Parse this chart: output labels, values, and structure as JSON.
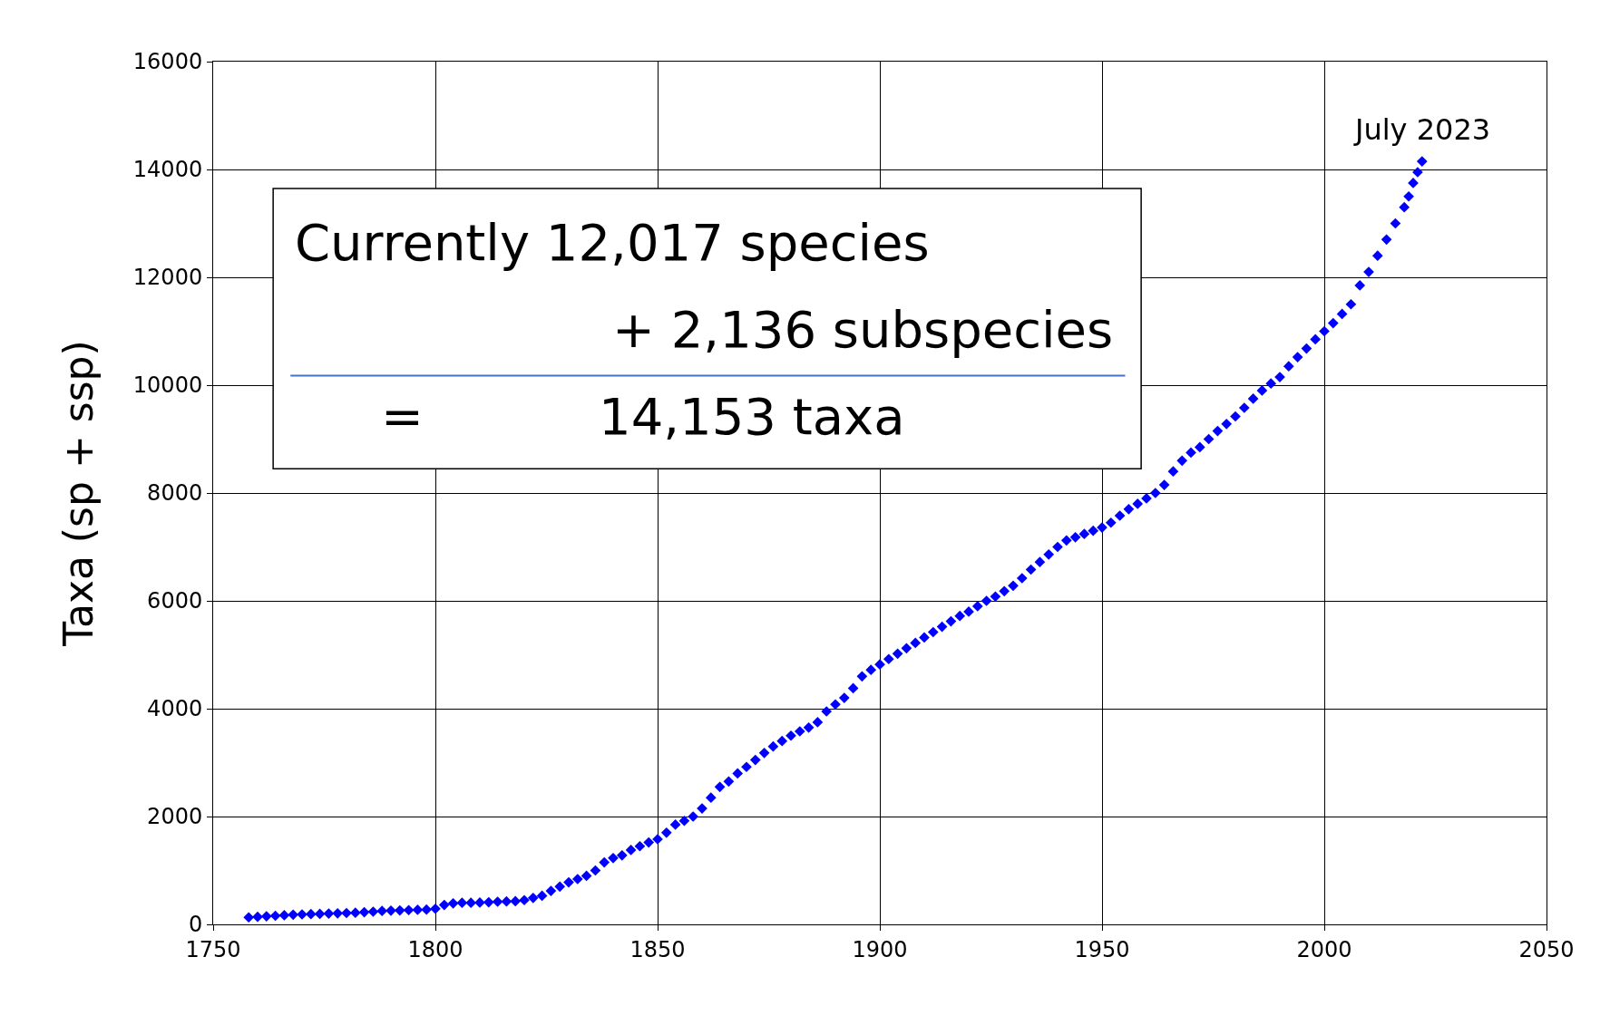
{
  "chart_data": {
    "type": "scatter",
    "ylabel": "Taxa (sp + ssp)",
    "x": [
      1758,
      1760,
      1762,
      1764,
      1766,
      1768,
      1770,
      1772,
      1774,
      1776,
      1778,
      1780,
      1782,
      1784,
      1786,
      1788,
      1790,
      1792,
      1794,
      1796,
      1798,
      1800,
      1802,
      1804,
      1806,
      1808,
      1810,
      1812,
      1814,
      1816,
      1818,
      1820,
      1822,
      1824,
      1826,
      1828,
      1830,
      1832,
      1834,
      1836,
      1838,
      1840,
      1842,
      1844,
      1846,
      1848,
      1850,
      1852,
      1854,
      1856,
      1858,
      1860,
      1862,
      1864,
      1866,
      1868,
      1870,
      1872,
      1874,
      1876,
      1878,
      1880,
      1882,
      1884,
      1886,
      1888,
      1890,
      1892,
      1894,
      1896,
      1898,
      1900,
      1902,
      1904,
      1906,
      1908,
      1910,
      1912,
      1914,
      1916,
      1918,
      1920,
      1922,
      1924,
      1926,
      1928,
      1930,
      1932,
      1934,
      1936,
      1938,
      1940,
      1942,
      1944,
      1946,
      1948,
      1950,
      1952,
      1954,
      1956,
      1958,
      1960,
      1962,
      1964,
      1966,
      1968,
      1970,
      1972,
      1974,
      1976,
      1978,
      1980,
      1982,
      1984,
      1986,
      1988,
      1990,
      1992,
      1994,
      1996,
      1998,
      2000,
      2002,
      2004,
      2006,
      2008,
      2010,
      2012,
      2014,
      2016,
      2018,
      2019,
      2020,
      2021,
      2022
    ],
    "series": [
      {
        "color": "#0000ff",
        "values": [
          130,
          140,
          150,
          160,
          170,
          180,
          185,
          190,
          195,
          200,
          205,
          210,
          215,
          225,
          235,
          250,
          255,
          260,
          265,
          270,
          275,
          290,
          360,
          390,
          400,
          400,
          405,
          410,
          420,
          425,
          430,
          450,
          490,
          530,
          620,
          700,
          780,
          840,
          900,
          1000,
          1150,
          1230,
          1280,
          1380,
          1450,
          1520,
          1580,
          1700,
          1850,
          1920,
          2000,
          2150,
          2350,
          2550,
          2650,
          2800,
          2920,
          3050,
          3180,
          3300,
          3400,
          3500,
          3580,
          3650,
          3750,
          3950,
          4080,
          4200,
          4380,
          4600,
          4720,
          4820,
          4920,
          5020,
          5120,
          5220,
          5320,
          5420,
          5520,
          5620,
          5720,
          5800,
          5900,
          6000,
          6080,
          6180,
          6280,
          6420,
          6580,
          6720,
          6860,
          7000,
          7120,
          7180,
          7240,
          7300,
          7360,
          7450,
          7580,
          7700,
          7800,
          7900,
          8000,
          8150,
          8400,
          8600,
          8750,
          8850,
          9000,
          9150,
          9280,
          9420,
          9580,
          9750,
          9900,
          10030,
          10150,
          10350,
          10520,
          10680,
          10850,
          11000,
          11150,
          11320,
          11500,
          11850,
          12100,
          12400,
          12700,
          13000,
          13300,
          13500,
          13750,
          13950,
          14150
        ]
      }
    ],
    "marker": "diamond",
    "xlim": [
      1750,
      2050
    ],
    "xticks": [
      1750,
      1800,
      1850,
      1900,
      1950,
      2000,
      2050
    ],
    "ylim": [
      0,
      16000
    ],
    "yticks": [
      0,
      2000,
      4000,
      6000,
      8000,
      10000,
      12000,
      14000,
      16000
    ],
    "grid": true,
    "annotations": [
      {
        "text": "July 2023",
        "x": 2022,
        "y": 14150
      },
      "Currently 12,017 species",
      "+ 2,136 subspecies",
      "=",
      "14,153 taxa"
    ]
  }
}
